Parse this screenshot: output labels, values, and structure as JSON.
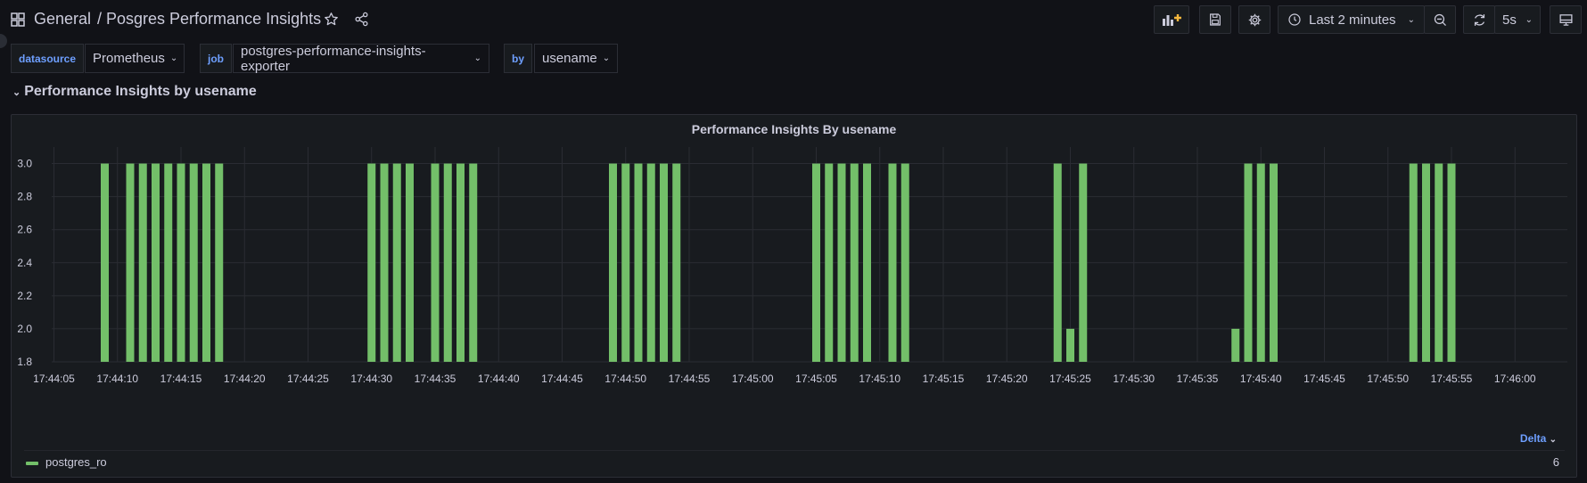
{
  "header": {
    "breadcrumb_folder": "General",
    "breadcrumb_dashboard": "/ Posgres Performance Insights",
    "time_range": "Last 2 minutes",
    "refresh_interval": "5s"
  },
  "variables": [
    {
      "label": "datasource",
      "value": "Prometheus"
    },
    {
      "label": "job",
      "value": "postgres-performance-insights-exporter"
    },
    {
      "label": "by",
      "value": "usename"
    }
  ],
  "row": {
    "title": "Performance Insights by usename"
  },
  "panel": {
    "title": "Performance Insights By usename",
    "legend_mode": "Delta",
    "legend_items": [
      {
        "name": "postgres_ro",
        "value": "6",
        "color": "#73bf69"
      }
    ]
  },
  "chart_data": {
    "type": "bar",
    "title": "Performance Insights By usename",
    "xlabel": "",
    "ylabel": "",
    "ylim": [
      1.8,
      3.1
    ],
    "y_ticks": [
      "1.8",
      "2.0",
      "2.2",
      "2.4",
      "2.6",
      "2.8",
      "3.0"
    ],
    "x_ticks": [
      "17:44:05",
      "17:44:10",
      "17:44:15",
      "17:44:20",
      "17:44:25",
      "17:44:30",
      "17:44:35",
      "17:44:40",
      "17:44:45",
      "17:44:50",
      "17:44:55",
      "17:45:00",
      "17:45:05",
      "17:45:10",
      "17:45:15",
      "17:45:20",
      "17:45:25",
      "17:45:30",
      "17:45:35",
      "17:45:40",
      "17:45:45",
      "17:45:50",
      "17:45:55",
      "17:46:00"
    ],
    "grid": true,
    "series": [
      {
        "name": "postgres_ro",
        "color": "#73bf69",
        "points": [
          [
            "17:44:09",
            3.0
          ],
          [
            "17:44:11",
            3.0
          ],
          [
            "17:44:12",
            3.0
          ],
          [
            "17:44:13",
            3.0
          ],
          [
            "17:44:14",
            3.0
          ],
          [
            "17:44:15",
            3.0
          ],
          [
            "17:44:16",
            3.0
          ],
          [
            "17:44:17",
            3.0
          ],
          [
            "17:44:18",
            3.0
          ],
          [
            "17:44:30",
            3.0
          ],
          [
            "17:44:31",
            3.0
          ],
          [
            "17:44:32",
            3.0
          ],
          [
            "17:44:33",
            3.0
          ],
          [
            "17:44:35",
            3.0
          ],
          [
            "17:44:36",
            3.0
          ],
          [
            "17:44:37",
            3.0
          ],
          [
            "17:44:38",
            3.0
          ],
          [
            "17:44:49",
            3.0
          ],
          [
            "17:44:50",
            3.0
          ],
          [
            "17:44:51",
            3.0
          ],
          [
            "17:44:52",
            3.0
          ],
          [
            "17:44:53",
            3.0
          ],
          [
            "17:44:54",
            3.0
          ],
          [
            "17:45:05",
            3.0
          ],
          [
            "17:45:06",
            3.0
          ],
          [
            "17:45:07",
            3.0
          ],
          [
            "17:45:08",
            3.0
          ],
          [
            "17:45:09",
            3.0
          ],
          [
            "17:45:11",
            3.0
          ],
          [
            "17:45:12",
            3.0
          ],
          [
            "17:45:24",
            3.0
          ],
          [
            "17:45:25",
            2.0
          ],
          [
            "17:45:26",
            3.0
          ],
          [
            "17:45:38",
            2.0
          ],
          [
            "17:45:39",
            3.0
          ],
          [
            "17:45:40",
            3.0
          ],
          [
            "17:45:41",
            3.0
          ],
          [
            "17:45:52",
            3.0
          ],
          [
            "17:45:53",
            3.0
          ],
          [
            "17:45:54",
            3.0
          ],
          [
            "17:45:55",
            3.0
          ]
        ]
      }
    ]
  }
}
